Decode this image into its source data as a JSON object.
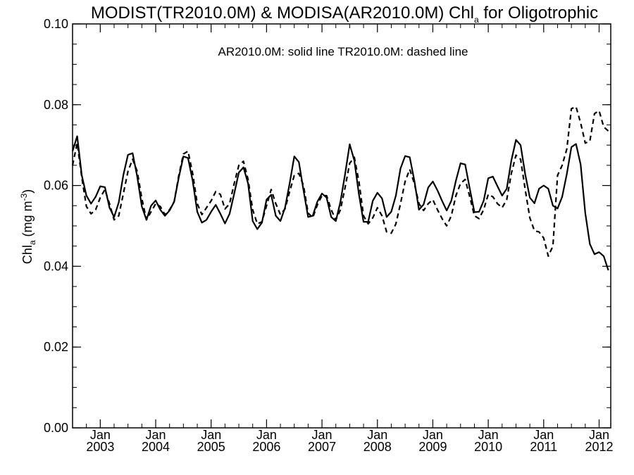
{
  "chart_data": {
    "type": "line",
    "title": {
      "main": "MODIST(TR2010.0M) & MODISA(AR2010.0M)  Chl",
      "sub": "a",
      "tail": " for Oligotrophic"
    },
    "ylabel": {
      "main": "Chl",
      "sub": "a",
      "mid": " (mg m",
      "sup": "-3",
      "tail": ")"
    },
    "annotation": "AR2010.0M: solid line   TR2010.0M: dashed line",
    "ylim": [
      0.0,
      0.1
    ],
    "y_ticks": [
      "0.00",
      "0.02",
      "0.04",
      "0.06",
      "0.08",
      "0.10"
    ],
    "x_range": [
      2002.5,
      2012.21
    ],
    "x_ticks": [
      {
        "month": "Jan",
        "year": "2003"
      },
      {
        "month": "Jan",
        "year": "2004"
      },
      {
        "month": "Jan",
        "year": "2005"
      },
      {
        "month": "Jan",
        "year": "2006"
      },
      {
        "month": "Jan",
        "year": "2007"
      },
      {
        "month": "Jan",
        "year": "2008"
      },
      {
        "month": "Jan",
        "year": "2009"
      },
      {
        "month": "Jan",
        "year": "2010"
      },
      {
        "month": "Jan",
        "year": "2011"
      },
      {
        "month": "Jan",
        "year": "2012"
      }
    ],
    "x_start_label": "2002-07",
    "series": [
      {
        "name": "AR2010.0M",
        "style": "solid",
        "values": [
          0.0685,
          0.0722,
          0.0625,
          0.0575,
          0.0555,
          0.0572,
          0.0598,
          0.0596,
          0.0545,
          0.0522,
          0.0558,
          0.0626,
          0.0676,
          0.068,
          0.0622,
          0.0548,
          0.0515,
          0.055,
          0.0563,
          0.054,
          0.0525,
          0.0538,
          0.056,
          0.062,
          0.0672,
          0.0668,
          0.0612,
          0.0535,
          0.0508,
          0.0515,
          0.0535,
          0.0552,
          0.053,
          0.0506,
          0.053,
          0.058,
          0.0632,
          0.0645,
          0.0605,
          0.0512,
          0.0492,
          0.0508,
          0.0565,
          0.0577,
          0.0525,
          0.0512,
          0.0545,
          0.0605,
          0.0672,
          0.0658,
          0.0588,
          0.0522,
          0.0525,
          0.056,
          0.058,
          0.057,
          0.0522,
          0.0512,
          0.056,
          0.0628,
          0.0702,
          0.0662,
          0.0578,
          0.051,
          0.051,
          0.0562,
          0.0582,
          0.0568,
          0.0522,
          0.0535,
          0.0575,
          0.0642,
          0.0673,
          0.067,
          0.0612,
          0.054,
          0.0553,
          0.0595,
          0.061,
          0.0588,
          0.0562,
          0.0538,
          0.0562,
          0.0612,
          0.0655,
          0.0652,
          0.0592,
          0.0534,
          0.0535,
          0.0562,
          0.0618,
          0.0622,
          0.0598,
          0.0575,
          0.0592,
          0.0662,
          0.0713,
          0.07,
          0.0628,
          0.057,
          0.0556,
          0.0592,
          0.06,
          0.0592,
          0.055,
          0.0543,
          0.0572,
          0.0628,
          0.0695,
          0.0703,
          0.0652,
          0.0532,
          0.0455,
          0.043,
          0.0435,
          0.0425,
          0.039
        ]
      },
      {
        "name": "TR2010.0M",
        "style": "dashed",
        "values": [
          0.065,
          0.0705,
          0.062,
          0.0548,
          0.053,
          0.054,
          0.057,
          0.059,
          0.0555,
          0.0515,
          0.0525,
          0.058,
          0.0635,
          0.0665,
          0.0635,
          0.0568,
          0.0515,
          0.0535,
          0.0555,
          0.0548,
          0.0528,
          0.054,
          0.056,
          0.0625,
          0.0678,
          0.0685,
          0.063,
          0.0555,
          0.0528,
          0.0545,
          0.0562,
          0.0585,
          0.0578,
          0.0542,
          0.0555,
          0.0605,
          0.065,
          0.066,
          0.0615,
          0.054,
          0.0505,
          0.051,
          0.055,
          0.059,
          0.0555,
          0.0528,
          0.0542,
          0.0585,
          0.0625,
          0.063,
          0.06,
          0.0532,
          0.052,
          0.0552,
          0.0575,
          0.0575,
          0.054,
          0.0515,
          0.054,
          0.0595,
          0.0655,
          0.067,
          0.061,
          0.0525,
          0.0505,
          0.052,
          0.0545,
          0.0525,
          0.0485,
          0.0482,
          0.0505,
          0.0555,
          0.061,
          0.064,
          0.0605,
          0.0555,
          0.0538,
          0.0555,
          0.0565,
          0.054,
          0.0518,
          0.05,
          0.0525,
          0.0575,
          0.0605,
          0.0615,
          0.0572,
          0.0525,
          0.0518,
          0.054,
          0.0578,
          0.0572,
          0.0555,
          0.0545,
          0.0565,
          0.063,
          0.0675,
          0.0665,
          0.059,
          0.052,
          0.0488,
          0.0485,
          0.047,
          0.0425,
          0.045,
          0.0625,
          0.065,
          0.069,
          0.079,
          0.0795,
          0.0755,
          0.0705,
          0.071,
          0.0778,
          0.0785,
          0.0745,
          0.0735
        ]
      }
    ]
  }
}
